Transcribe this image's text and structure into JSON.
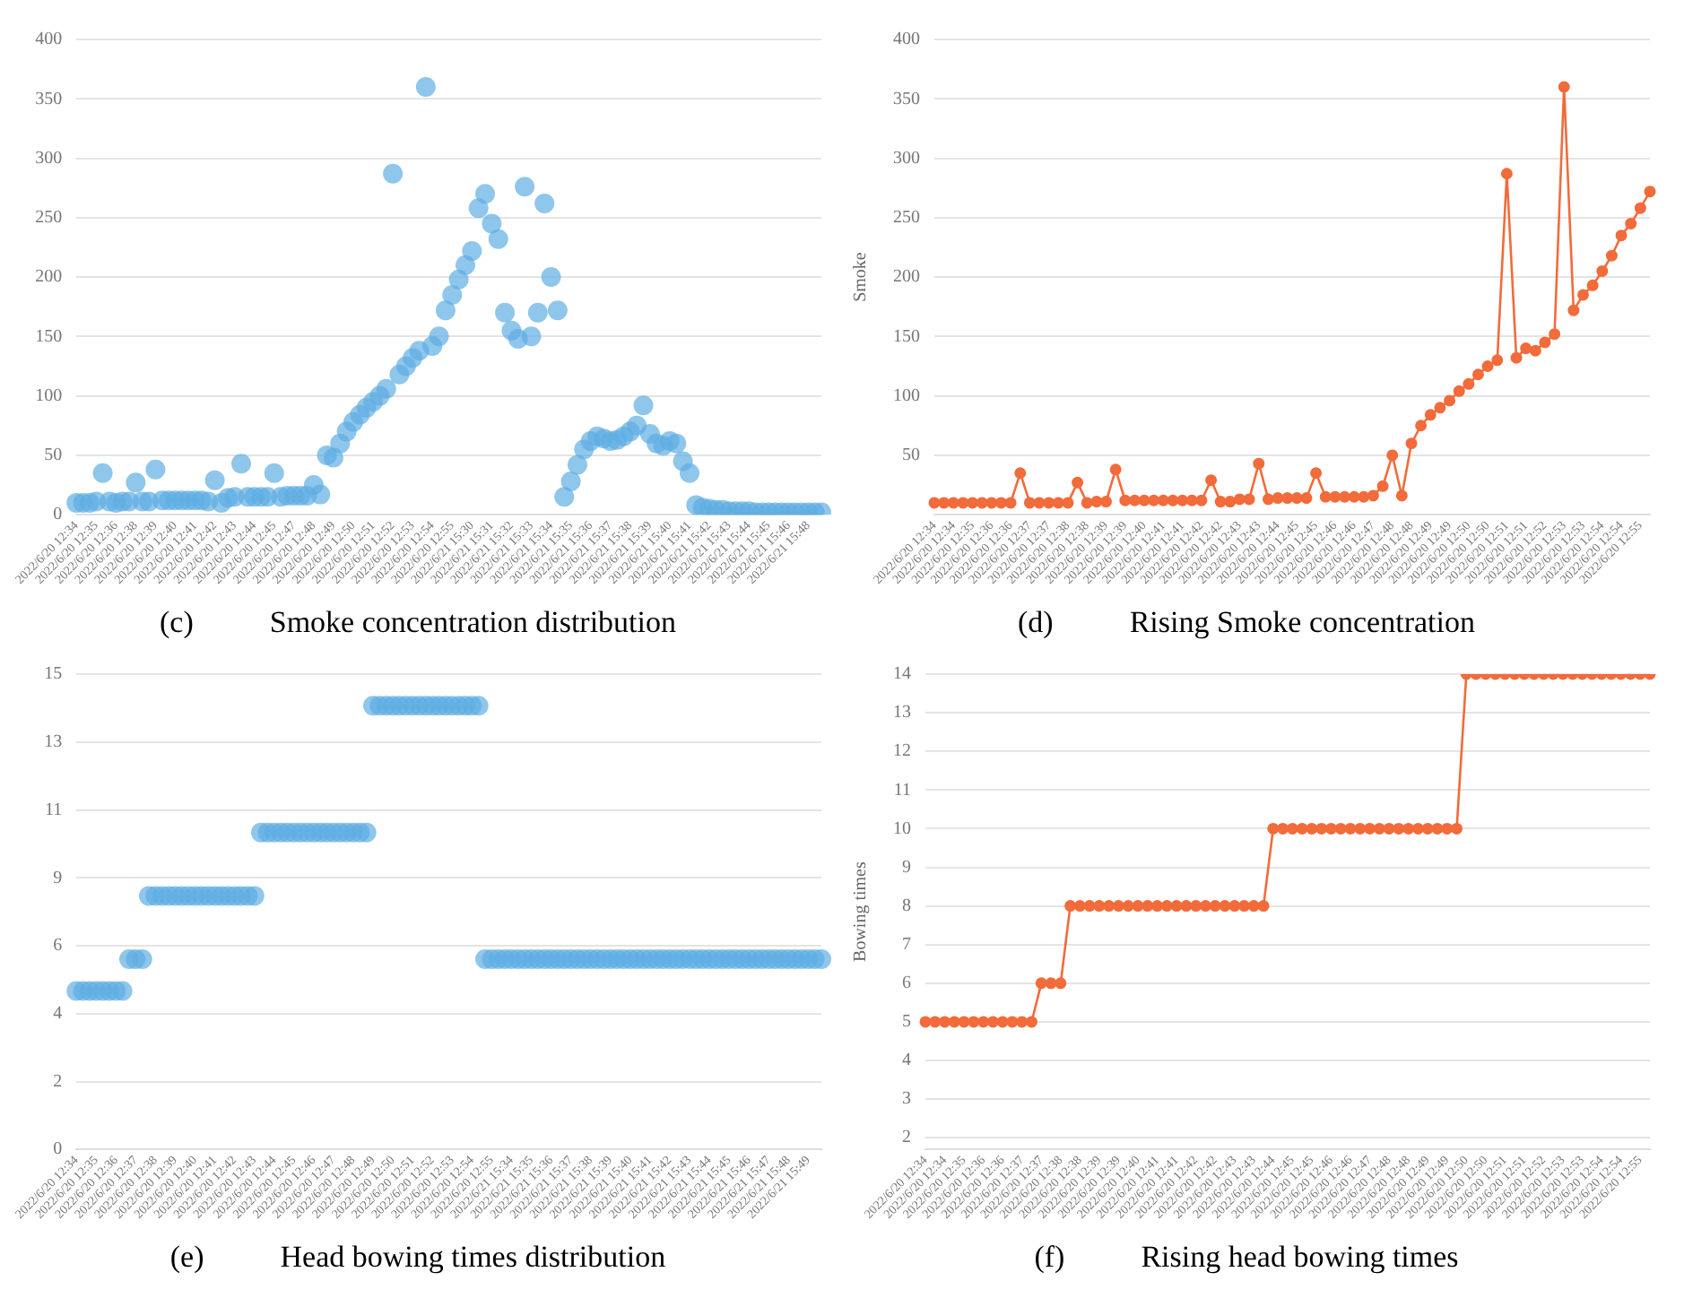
{
  "chart_data": [
    {
      "type": "scatter",
      "title": "(c)          Smoke concentration distribution",
      "categories": [
        "2022/6/20 12:34",
        null,
        null,
        "2022/6/20 12:35",
        null,
        null,
        "2022/6/20 12:36",
        null,
        null,
        "2022/6/20 12:38",
        null,
        null,
        "2022/6/20 12:39",
        null,
        null,
        "2022/6/20 12:40",
        null,
        null,
        "2022/6/20 12:41",
        null,
        null,
        "2022/6/20 12:42",
        null,
        null,
        "2022/6/20 12:43",
        null,
        null,
        "2022/6/20 12:44",
        null,
        null,
        "2022/6/20 12:45",
        null,
        null,
        "2022/6/20 12:47",
        null,
        null,
        "2022/6/20 12:48",
        null,
        null,
        "2022/6/20 12:49",
        null,
        null,
        "2022/6/20 12:50",
        null,
        null,
        "2022/6/20 12:51",
        null,
        null,
        "2022/6/20 12:52",
        null,
        null,
        "2022/6/20 12:53",
        null,
        null,
        "2022/6/20 12:54",
        null,
        null,
        "2022/6/20 12:55",
        null,
        null,
        "2022/6/21 15:30",
        null,
        null,
        "2022/6/21 15:31",
        null,
        null,
        "2022/6/21 15:32",
        null,
        null,
        "2022/6/21 15:33",
        null,
        null,
        "2022/6/21 15:34",
        null,
        null,
        "2022/6/21 15:35",
        null,
        null,
        "2022/6/21 15:36",
        null,
        null,
        "2022/6/21 15:37",
        null,
        null,
        "2022/6/21 15:38",
        null,
        null,
        "2022/6/21 15:39",
        null,
        null,
        "2022/6/21 15:40",
        null,
        null,
        "2022/6/21 15:41",
        null,
        null,
        "2022/6/21 15:42",
        null,
        null,
        "2022/6/21 15:43",
        null,
        null,
        "2022/6/21 15:44",
        null,
        null,
        "2022/6/21 15:45",
        null,
        null,
        "2022/6/21 15:46",
        null,
        null,
        "2022/6/21 15:48",
        null,
        null
      ],
      "series": [
        {
          "color": "#5dade2",
          "values": [
            10,
            10,
            10,
            11,
            35,
            11,
            10,
            11,
            11,
            27,
            11,
            11,
            38,
            12,
            12,
            12,
            12,
            12,
            12,
            12,
            11,
            29,
            10,
            14,
            15,
            43,
            15,
            15,
            15,
            15,
            35,
            15,
            16,
            16,
            16,
            16,
            25,
            17,
            50,
            48,
            60,
            70,
            78,
            84,
            90,
            95,
            100,
            106,
            287,
            118,
            125,
            132,
            138,
            360,
            142,
            150,
            172,
            185,
            198,
            210,
            222,
            258,
            270,
            245,
            232,
            170,
            155,
            148,
            276,
            150,
            170,
            262,
            200,
            172,
            15,
            28,
            42,
            55,
            62,
            66,
            64,
            62,
            63,
            66,
            70,
            75,
            92,
            68,
            60,
            58,
            62,
            60,
            45,
            35,
            8,
            6,
            5,
            4,
            4,
            3,
            3,
            3,
            3,
            2,
            2,
            2,
            2,
            2,
            2,
            2,
            2,
            2,
            2,
            2
          ]
        }
      ],
      "ylim": [
        0,
        400
      ],
      "yticks": [
        0,
        50,
        100,
        150,
        200,
        250,
        300,
        350,
        400
      ],
      "grid": "y",
      "legend": false,
      "marker": "circle"
    },
    {
      "type": "line",
      "title": "(d)          Rising Smoke concentration",
      "ylabel": "Smoke",
      "categories": [
        "2022/6/20 12:34",
        null,
        "2022/6/20 12:34",
        null,
        "2022/6/20 12:35",
        null,
        "2022/6/20 12:36",
        null,
        "2022/6/20 12:36",
        null,
        "2022/6/20 12:37",
        null,
        "2022/6/20 12:37",
        null,
        "2022/6/20 12:38",
        null,
        "2022/6/20 12:38",
        null,
        "2022/6/20 12:39",
        null,
        "2022/6/20 12:39",
        null,
        "2022/6/20 12:40",
        null,
        "2022/6/20 12:41",
        null,
        "2022/6/20 12:41",
        null,
        "2022/6/20 12:42",
        null,
        "2022/6/20 12:42",
        null,
        "2022/6/20 12:43",
        null,
        "2022/6/20 12:43",
        null,
        "2022/6/20 12:44",
        null,
        "2022/6/20 12:45",
        null,
        "2022/6/20 12:45",
        null,
        "2022/6/20 12:46",
        null,
        "2022/6/20 12:46",
        null,
        "2022/6/20 12:47",
        null,
        "2022/6/20 12:48",
        null,
        "2022/6/20 12:48",
        null,
        "2022/6/20 12:49",
        null,
        "2022/6/20 12:49",
        null,
        "2022/6/20 12:50",
        null,
        "2022/6/20 12:50",
        null,
        "2022/6/20 12:51",
        null,
        "2022/6/20 12:51",
        null,
        "2022/6/20 12:52",
        null,
        "2022/6/20 12:53",
        null,
        "2022/6/20 12:53",
        null,
        "2022/6/20 12:54",
        null,
        "2022/6/20 12:54",
        null,
        "2022/6/20 12:55",
        null
      ],
      "series": [
        {
          "color": "#f26b3a",
          "values": [
            10,
            10,
            10,
            10,
            10,
            10,
            10,
            10,
            10,
            35,
            10,
            10,
            10,
            10,
            10,
            27,
            10,
            11,
            11,
            38,
            12,
            12,
            12,
            12,
            12,
            12,
            12,
            12,
            12,
            29,
            11,
            11,
            13,
            13,
            43,
            13,
            14,
            14,
            14,
            14,
            35,
            15,
            15,
            15,
            15,
            15,
            16,
            24,
            50,
            16,
            60,
            75,
            84,
            90,
            96,
            104,
            110,
            118,
            125,
            130,
            287,
            132,
            140,
            138,
            145,
            152,
            360,
            172,
            185,
            193,
            205,
            218,
            235,
            245,
            258,
            272
          ]
        }
      ],
      "ylim": [
        0,
        400
      ],
      "yticks": [
        50,
        100,
        150,
        200,
        250,
        300,
        350,
        400
      ],
      "grid": "y",
      "legend": false,
      "marker": "circle",
      "line_style": "solid"
    },
    {
      "type": "scatter",
      "title": "(e)          Head bowing times distribution",
      "categories": [
        "2022/6/20 12:34",
        null,
        null,
        "2022/6/20 12:35",
        null,
        null,
        "2022/6/20 12:36",
        null,
        null,
        "2022/6/20 12:37",
        null,
        null,
        "2022/6/20 12:38",
        null,
        null,
        "2022/6/20 12:39",
        null,
        null,
        "2022/6/20 12:40",
        null,
        null,
        "2022/6/20 12:41",
        null,
        null,
        "2022/6/20 12:42",
        null,
        null,
        "2022/6/20 12:43",
        null,
        null,
        "2022/6/20 12:44",
        null,
        null,
        "2022/6/20 12:45",
        null,
        null,
        "2022/6/20 12:46",
        null,
        null,
        "2022/6/20 12:47",
        null,
        null,
        "2022/6/20 12:48",
        null,
        null,
        "2022/6/20 12:49",
        null,
        null,
        "2022/6/20 12:50",
        null,
        null,
        "2022/6/20 12:51",
        null,
        null,
        "2022/6/20 12:52",
        null,
        null,
        "2022/6/20 12:53",
        null,
        null,
        "2022/6/20 12:54",
        null,
        null,
        "2022/6/20 12:55",
        null,
        null,
        "2022/6/21 15:34",
        null,
        null,
        "2022/6/21 15:35",
        null,
        null,
        "2022/6/21 15:36",
        null,
        null,
        "2022/6/21 15:37",
        null,
        null,
        "2022/6/21 15:38",
        null,
        null,
        "2022/6/21 15:39",
        null,
        null,
        "2022/6/21 15:40",
        null,
        null,
        "2022/6/21 15:41",
        null,
        null,
        "2022/6/21 15:42",
        null,
        null,
        "2022/6/21 15:43",
        null,
        null,
        "2022/6/21 15:44",
        null,
        null,
        "2022/6/21 15:45",
        null,
        null,
        "2022/6/21 15:46",
        null,
        null,
        "2022/6/21 15:47",
        null,
        null,
        "2022/6/21 15:48",
        null,
        null,
        "2022/6/21 15:49",
        null,
        null
      ],
      "series": [
        {
          "color": "#5dade2",
          "values": [
            5,
            5,
            5,
            5,
            5,
            5,
            5,
            5,
            6,
            6,
            6,
            8,
            8,
            8,
            8,
            8,
            8,
            8,
            8,
            8,
            8,
            8,
            8,
            8,
            8,
            8,
            8,
            8,
            10,
            10,
            10,
            10,
            10,
            10,
            10,
            10,
            10,
            10,
            10,
            10,
            10,
            10,
            10,
            10,
            10,
            14,
            14,
            14,
            14,
            14,
            14,
            14,
            14,
            14,
            14,
            14,
            14,
            14,
            14,
            14,
            14,
            14,
            6,
            6,
            6,
            6,
            6,
            6,
            6,
            6,
            6,
            6,
            6,
            6,
            6,
            6,
            6,
            6,
            6,
            6,
            6,
            6,
            6,
            6,
            6,
            6,
            6,
            6,
            6,
            6,
            6,
            6,
            6,
            6,
            6,
            6,
            6,
            6,
            6,
            6,
            6,
            6,
            6,
            6,
            6,
            6,
            6,
            6,
            6,
            6,
            6,
            6,
            6,
            6
          ]
        }
      ],
      "ylim": [
        0,
        15
      ],
      "yticks": [
        0,
        {
          "value": 2.14,
          "label": "2"
        },
        {
          "value": 4.29,
          "label": "4"
        },
        {
          "value": 6.43,
          "label": "6"
        },
        {
          "value": 8.57,
          "label": "9"
        },
        {
          "value": 10.71,
          "label": "11"
        },
        {
          "value": 12.86,
          "label": "13"
        },
        15
      ],
      "grid": "y",
      "legend": false,
      "marker": "circle"
    },
    {
      "type": "line",
      "title": "(f)          Rising head bowing times",
      "ylabel": "Bowing times",
      "categories": [
        "2022/6/20 12:34",
        null,
        "2022/6/20 12:34",
        null,
        "2022/6/20 12:35",
        null,
        "2022/6/20 12:36",
        null,
        "2022/6/20 12:36",
        null,
        "2022/6/20 12:37",
        null,
        "2022/6/20 12:37",
        null,
        "2022/6/20 12:38",
        null,
        "2022/6/20 12:38",
        null,
        "2022/6/20 12:39",
        null,
        "2022/6/20 12:39",
        null,
        "2022/6/20 12:40",
        null,
        "2022/6/20 12:41",
        null,
        "2022/6/20 12:41",
        null,
        "2022/6/20 12:42",
        null,
        "2022/6/20 12:42",
        null,
        "2022/6/20 12:43",
        null,
        "2022/6/20 12:43",
        null,
        "2022/6/20 12:44",
        null,
        "2022/6/20 12:45",
        null,
        "2022/6/20 12:45",
        null,
        "2022/6/20 12:46",
        null,
        "2022/6/20 12:46",
        null,
        "2022/6/20 12:47",
        null,
        "2022/6/20 12:48",
        null,
        "2022/6/20 12:48",
        null,
        "2022/6/20 12:49",
        null,
        "2022/6/20 12:49",
        null,
        "2022/6/20 12:50",
        null,
        "2022/6/20 12:50",
        null,
        "2022/6/20 12:51",
        null,
        "2022/6/20 12:51",
        null,
        "2022/6/20 12:52",
        null,
        "2022/6/20 12:53",
        null,
        "2022/6/20 12:53",
        null,
        "2022/6/20 12:54",
        null,
        "2022/6/20 12:54",
        null,
        "2022/6/20 12:55",
        null
      ],
      "series": [
        {
          "color": "#f26b3a",
          "values": [
            5,
            5,
            5,
            5,
            5,
            5,
            5,
            5,
            5,
            5,
            5,
            5,
            6,
            6,
            6,
            8,
            8,
            8,
            8,
            8,
            8,
            8,
            8,
            8,
            8,
            8,
            8,
            8,
            8,
            8,
            8,
            8,
            8,
            8,
            8,
            8,
            10,
            10,
            10,
            10,
            10,
            10,
            10,
            10,
            10,
            10,
            10,
            10,
            10,
            10,
            10,
            10,
            10,
            10,
            10,
            10,
            14,
            14,
            14,
            14,
            14,
            14,
            14,
            14,
            14,
            14,
            14,
            14,
            14,
            14,
            14,
            14,
            14,
            14,
            14,
            14
          ]
        }
      ],
      "ylim": [
        1.7,
        14
      ],
      "yticks": [
        2,
        3,
        4,
        5,
        6,
        7,
        8,
        9,
        10,
        11,
        12,
        13,
        14
      ],
      "grid": "y",
      "legend": false,
      "marker": "circle",
      "line_style": "solid"
    }
  ]
}
